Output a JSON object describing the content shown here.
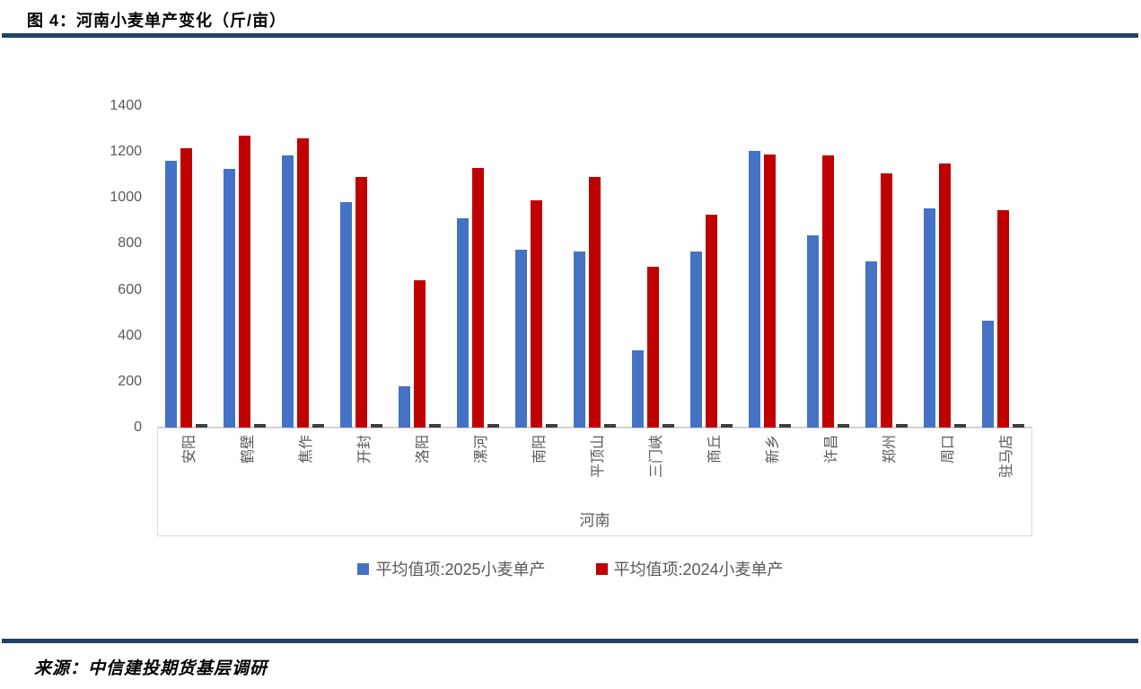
{
  "header": {
    "title": "图 4：河南小麦单产变化（斤/亩）"
  },
  "footer": {
    "source": "来源：中信建投期货基层调研"
  },
  "chart_data": {
    "type": "bar",
    "title": "河南小麦单产变化（斤/亩）",
    "categories": [
      "安阳",
      "鹤壁",
      "焦作",
      "开封",
      "洛阳",
      "漯河",
      "南阳",
      "平顶山",
      "三门峡",
      "商丘",
      "新乡",
      "许昌",
      "郑州",
      "周口",
      "驻马店"
    ],
    "series": [
      {
        "name": "平均值项:2025小麦单产",
        "color": "#4472C4",
        "values": [
          1160,
          1125,
          1185,
          980,
          180,
          910,
          775,
          765,
          335,
          765,
          1205,
          835,
          725,
          955,
          465
        ]
      },
      {
        "name": "平均值项:2024小麦单产",
        "color": "#C00000",
        "values": [
          1215,
          1270,
          1260,
          1090,
          640,
          1130,
          990,
          1090,
          700,
          925,
          1190,
          1185,
          1105,
          1150,
          945
        ]
      }
    ],
    "baseline_marks": {
      "color": "#3F3F3F",
      "value": 10
    },
    "xlabel": "河南",
    "ylabel": "",
    "ylim": [
      0,
      1400
    ],
    "ytick_step": 200,
    "yticks": [
      0,
      200,
      400,
      600,
      800,
      1000,
      1200,
      1400
    ],
    "grid": false,
    "legend_position": "bottom",
    "axis_text_color": "#595959"
  },
  "colors": {
    "divider": "#1F4368",
    "axis_line": "#CDCDCD",
    "category_box_border": "#D9D9D9"
  }
}
